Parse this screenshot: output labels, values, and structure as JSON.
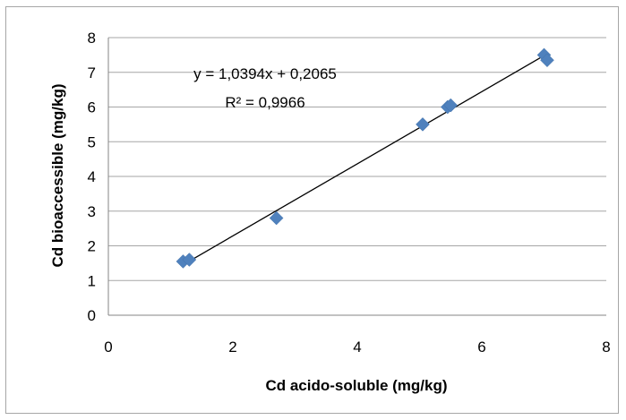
{
  "chart_data": {
    "type": "scatter",
    "title": "",
    "xlabel": "Cd acido-soluble (mg/kg)",
    "ylabel": "Cd bioaccessible (mg/kg)",
    "xlim": [
      0,
      8
    ],
    "ylim": [
      0,
      8
    ],
    "x_ticks": [
      "0",
      "2",
      "4",
      "6",
      "8"
    ],
    "y_ticks": [
      "0",
      "1",
      "2",
      "3",
      "4",
      "5",
      "6",
      "7",
      "8"
    ],
    "grid": "horizontal",
    "legend": "none",
    "series": [
      {
        "marker": "diamond",
        "color": "#4f81bd",
        "points": [
          {
            "x": 1.2,
            "y": 1.55
          },
          {
            "x": 1.3,
            "y": 1.6
          },
          {
            "x": 2.7,
            "y": 2.8
          },
          {
            "x": 5.05,
            "y": 5.5
          },
          {
            "x": 5.45,
            "y": 6.0
          },
          {
            "x": 5.5,
            "y": 6.05
          },
          {
            "x": 7.0,
            "y": 7.5
          },
          {
            "x": 7.05,
            "y": 7.35
          }
        ]
      }
    ],
    "trendline": {
      "type": "linear",
      "slope": 1.0394,
      "intercept": 0.2065,
      "x_range": [
        1.2,
        7.05
      ],
      "color": "#000000"
    },
    "annotations": {
      "equation": "y = 1,0394x + 0,2065",
      "r_squared": "R² = 0,9966"
    }
  }
}
